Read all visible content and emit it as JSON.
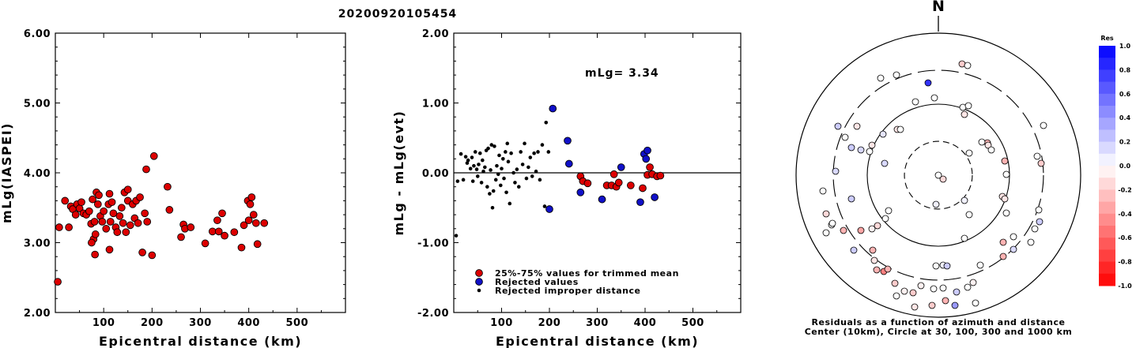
{
  "title": "20200920105454",
  "colors": {
    "accepted": "#dd0000",
    "rejected": "#1010c8",
    "improper": "#000000"
  },
  "chart_data": [
    {
      "type": "scatter",
      "xlabel": "Epicentral distance (km)",
      "ylabel": "mLg(IASPEI)",
      "xlim": [
        0,
        600
      ],
      "ylim": [
        2.0,
        6.0
      ],
      "xticks": [
        "100",
        "200",
        "300",
        "400",
        "500"
      ],
      "yticks": [
        "2.00",
        "3.00",
        "4.00",
        "5.00",
        "6.00"
      ],
      "series": [
        {
          "marker": "red-circle",
          "points": [
            [
              5,
              2.44
            ],
            [
              8,
              3.22
            ],
            [
              20,
              3.6
            ],
            [
              28,
              3.22
            ],
            [
              32,
              3.52
            ],
            [
              36,
              3.48
            ],
            [
              42,
              3.4
            ],
            [
              45,
              3.55
            ],
            [
              50,
              3.49
            ],
            [
              54,
              3.58
            ],
            [
              58,
              3.42
            ],
            [
              64,
              3.4
            ],
            [
              70,
              3.45
            ],
            [
              74,
              3.27
            ],
            [
              77,
              3.62
            ],
            [
              79,
              3.05
            ],
            [
              81,
              3.3
            ],
            [
              83,
              3.12
            ],
            [
              85,
              3.72
            ],
            [
              88,
              3.55
            ],
            [
              90,
              3.68
            ],
            [
              93,
              3.38
            ],
            [
              97,
              3.3
            ],
            [
              100,
              3.45
            ],
            [
              105,
              3.2
            ],
            [
              110,
              3.55
            ],
            [
              112,
              3.7
            ],
            [
              114,
              3.3
            ],
            [
              117,
              3.58
            ],
            [
              120,
              3.42
            ],
            [
              125,
              3.22
            ],
            [
              128,
              3.15
            ],
            [
              133,
              3.38
            ],
            [
              137,
              3.5
            ],
            [
              140,
              3.28
            ],
            [
              143,
              3.72
            ],
            [
              146,
              3.15
            ],
            [
              150,
              3.6
            ],
            [
              155,
              3.25
            ],
            [
              160,
              3.55
            ],
            [
              164,
              3.35
            ],
            [
              167,
              3.6
            ],
            [
              171,
              3.28
            ],
            [
              175,
              3.65
            ],
            [
              180,
              2.86
            ],
            [
              185,
              3.42
            ],
            [
              188,
              4.05
            ],
            [
              190,
              3.3
            ],
            [
              200,
              2.82
            ],
            [
              204,
              4.24
            ],
            [
              232,
              3.8
            ],
            [
              236,
              3.47
            ],
            [
              260,
              3.08
            ],
            [
              265,
              3.26
            ],
            [
              268,
              3.2
            ],
            [
              280,
              3.22
            ],
            [
              310,
              2.99
            ],
            [
              325,
              3.16
            ],
            [
              335,
              3.32
            ],
            [
              338,
              3.16
            ],
            [
              345,
              3.42
            ],
            [
              350,
              3.1
            ],
            [
              370,
              3.15
            ],
            [
              385,
              2.93
            ],
            [
              390,
              3.25
            ],
            [
              398,
              3.6
            ],
            [
              400,
              3.32
            ],
            [
              403,
              3.55
            ],
            [
              406,
              3.65
            ],
            [
              410,
              3.4
            ],
            [
              415,
              3.28
            ],
            [
              418,
              2.98
            ],
            [
              432,
              3.28
            ],
            [
              82,
              2.83
            ],
            [
              75,
              3.0
            ],
            [
              150,
              3.76
            ],
            [
              112,
              2.9
            ]
          ]
        }
      ]
    },
    {
      "type": "scatter",
      "xlabel": "Epicentral distance (km)",
      "ylabel": "mLg - mLg(evt)",
      "xlim": [
        0,
        600
      ],
      "ylim": [
        -2.0,
        2.0
      ],
      "xticks": [
        "100",
        "200",
        "300",
        "400",
        "500"
      ],
      "yticks": [
        "-2.00",
        "-1.00",
        "0.00",
        "1.00",
        "2.00"
      ],
      "annotation": "mLg= 3.34",
      "legend": [
        "25%-75% values for trimmed mean",
        "Rejected values",
        "Rejected improper distance"
      ],
      "series": [
        {
          "name": "25%-75% values for trimmed mean",
          "marker": "red-circle",
          "points": [
            [
              265,
              -0.05
            ],
            [
              270,
              -0.12
            ],
            [
              280,
              -0.15
            ],
            [
              320,
              -0.18
            ],
            [
              330,
              -0.18
            ],
            [
              335,
              -0.02
            ],
            [
              340,
              -0.2
            ],
            [
              345,
              -0.14
            ],
            [
              370,
              -0.18
            ],
            [
              395,
              -0.22
            ],
            [
              405,
              -0.03
            ],
            [
              410,
              0.08
            ],
            [
              415,
              -0.02
            ],
            [
              425,
              -0.05
            ],
            [
              432,
              -0.04
            ]
          ]
        },
        {
          "name": "Rejected values",
          "marker": "blue-circle",
          "points": [
            [
              200,
              -0.52
            ],
            [
              207,
              0.92
            ],
            [
              238,
              0.46
            ],
            [
              241,
              0.13
            ],
            [
              265,
              -0.28
            ],
            [
              310,
              -0.38
            ],
            [
              350,
              0.08
            ],
            [
              390,
              -0.42
            ],
            [
              398,
              0.27
            ],
            [
              402,
              0.2
            ],
            [
              405,
              0.32
            ],
            [
              420,
              -0.35
            ]
          ]
        },
        {
          "name": "Rejected improper distance",
          "marker": "black-dot",
          "points": [
            [
              5,
              -0.9
            ],
            [
              8,
              -0.12
            ],
            [
              15,
              0.27
            ],
            [
              20,
              -0.1
            ],
            [
              25,
              0.23
            ],
            [
              28,
              0.14
            ],
            [
              30,
              0.18
            ],
            [
              35,
              0.06
            ],
            [
              38,
              0.22
            ],
            [
              40,
              -0.12
            ],
            [
              42,
              0.1
            ],
            [
              45,
              0.3
            ],
            [
              48,
              0.05
            ],
            [
              50,
              -0.05
            ],
            [
              52,
              0.12
            ],
            [
              55,
              0.28
            ],
            [
              58,
              -0.14
            ],
            [
              60,
              0.18
            ],
            [
              62,
              0.02
            ],
            [
              65,
              0.08
            ],
            [
              68,
              0.32
            ],
            [
              70,
              -0.2
            ],
            [
              72,
              0.35
            ],
            [
              75,
              -0.3
            ],
            [
              77,
              0.04
            ],
            [
              79,
              0.4
            ],
            [
              81,
              -0.5
            ],
            [
              83,
              -0.26
            ],
            [
              85,
              0.38
            ],
            [
              88,
              -0.1
            ],
            [
              90,
              0.1
            ],
            [
              93,
              -0.02
            ],
            [
              95,
              0.25
            ],
            [
              98,
              -0.18
            ],
            [
              100,
              0.06
            ],
            [
              103,
              0.2
            ],
            [
              105,
              -0.08
            ],
            [
              108,
              0.3
            ],
            [
              110,
              -0.28
            ],
            [
              112,
              0.42
            ],
            [
              114,
              0.16
            ],
            [
              117,
              -0.44
            ],
            [
              120,
              0.28
            ],
            [
              125,
              0.0
            ],
            [
              128,
              -0.14
            ],
            [
              132,
              0.05
            ],
            [
              136,
              -0.2
            ],
            [
              140,
              0.3
            ],
            [
              144,
              0.12
            ],
            [
              148,
              0.42
            ],
            [
              152,
              -0.08
            ],
            [
              156,
              0.08
            ],
            [
              160,
              0.22
            ],
            [
              164,
              -0.05
            ],
            [
              168,
              0.28
            ],
            [
              172,
              0.02
            ],
            [
              176,
              0.3
            ],
            [
              180,
              -0.1
            ],
            [
              185,
              0.4
            ],
            [
              190,
              -0.48
            ],
            [
              193,
              0.72
            ],
            [
              198,
              0.3
            ]
          ]
        }
      ]
    },
    {
      "type": "scatter",
      "subtype": "polar",
      "north_label": "N",
      "caption_line1": "Residuals as a function of azimuth and distance",
      "caption_line2": "Center (10km), Circle at 30, 100, 300 and 1000 km",
      "colorbar": {
        "title": "Res",
        "ticks": [
          "1.0",
          "0.8",
          "0.6",
          "0.4",
          "0.2",
          "0.0",
          "-0.2",
          "-0.4",
          "-0.6",
          "-0.8",
          "-1.0"
        ],
        "range": [
          -1.0,
          1.0
        ]
      },
      "points": [
        [
          -127,
          62,
          0.2
        ],
        [
          -103,
          62,
          -0.1
        ],
        [
          -70,
          52,
          0.1
        ],
        [
          -52,
          58,
          -0.1
        ],
        [
          -48,
          58,
          0.0
        ],
        [
          -3,
          -37,
          0.05
        ],
        [
          33,
          -32,
          0.05
        ],
        [
          31,
          86,
          0.0
        ],
        [
          38,
          88,
          0.0
        ],
        [
          -84,
          38,
          -0.1
        ],
        [
          -98,
          32,
          0.15
        ],
        [
          -110,
          35,
          0.2
        ],
        [
          -87,
          30,
          0.0
        ],
        [
          -130,
          5,
          0.15
        ],
        [
          -110,
          -30,
          0.2
        ],
        [
          -68,
          15,
          0.15
        ],
        [
          -63,
          -45,
          0.0
        ],
        [
          -67,
          -55,
          0.0
        ],
        [
          -98,
          -70,
          -0.35
        ],
        [
          -120,
          -70,
          -0.3
        ],
        [
          -83,
          -95,
          -0.3
        ],
        [
          -107,
          -95,
          0.2
        ],
        [
          -142,
          -49,
          -0.15
        ],
        [
          -135,
          -63,
          0.0
        ],
        [
          -142,
          -73,
          0.0
        ],
        [
          -84,
          -68,
          -0.05
        ],
        [
          -77,
          -64,
          -0.15
        ],
        [
          -81,
          -108,
          -0.1
        ],
        [
          -78,
          -120,
          -0.3
        ],
        [
          -69,
          -122,
          -0.5
        ],
        [
          -64,
          -119,
          -0.3
        ],
        [
          -55,
          -137,
          -0.2
        ],
        [
          -53,
          -153,
          0.0
        ],
        [
          -43,
          -147,
          -0.05
        ],
        [
          -32,
          -149,
          -0.2
        ],
        [
          -22,
          -140,
          -0.05
        ],
        [
          -6,
          -144,
          0.0
        ],
        [
          6,
          -143,
          0.0
        ],
        [
          -8,
          -165,
          -0.2
        ],
        [
          -30,
          -167,
          -0.1
        ],
        [
          9,
          -159,
          -0.3
        ],
        [
          23,
          -148,
          0.2
        ],
        [
          37,
          -142,
          0.0
        ],
        [
          44,
          -136,
          -0.05
        ],
        [
          21,
          -165,
          0.4
        ],
        [
          6,
          -114,
          0.05
        ],
        [
          11,
          -115,
          0.2
        ],
        [
          -3,
          -115,
          0.0
        ],
        [
          47,
          -162,
          0.0
        ],
        [
          53,
          -114,
          0.0
        ],
        [
          82,
          -103,
          -0.3
        ],
        [
          82,
          -85,
          -0.3
        ],
        [
          95,
          -78,
          0.0
        ],
        [
          95,
          -94,
          0.15
        ],
        [
          117,
          -85,
          0.0
        ],
        [
          122,
          -68,
          0.0
        ],
        [
          128,
          -59,
          0.2
        ],
        [
          127,
          -44,
          0.0
        ],
        [
          86,
          -48,
          0.0
        ],
        [
          81,
          -27,
          -0.1
        ],
        [
          84,
          -30,
          -0.1
        ],
        [
          39,
          -50,
          0.0
        ],
        [
          33,
          -80,
          0.0
        ],
        [
          86,
          1,
          0.0
        ],
        [
          62,
          41,
          -0.3
        ],
        [
          63,
          38,
          -0.1
        ],
        [
          55,
          42,
          0.0
        ],
        [
          39,
          28,
          0.0
        ],
        [
          67,
          32,
          0.0
        ],
        [
          84,
          18,
          -0.3
        ],
        [
          33,
          77,
          -0.1
        ],
        [
          -13,
          117,
          0.8
        ],
        [
          -29,
          93,
          0.0
        ],
        [
          -5,
          98,
          0.0
        ],
        [
          -53,
          127,
          0.0
        ],
        [
          -73,
          123,
          0.0
        ],
        [
          30,
          141,
          -0.2
        ],
        [
          37,
          139,
          0.0
        ],
        [
          133,
          63,
          0.0
        ],
        [
          130,
          15,
          -0.2
        ],
        [
          125,
          24,
          0.0
        ],
        [
          -118,
          48,
          0.0
        ],
        [
          -146,
          -20,
          0.0
        ],
        [
          -134,
          -61,
          0.0
        ],
        [
          6,
          -5,
          -0.15
        ],
        [
          0,
          0,
          0.0
        ]
      ]
    }
  ]
}
